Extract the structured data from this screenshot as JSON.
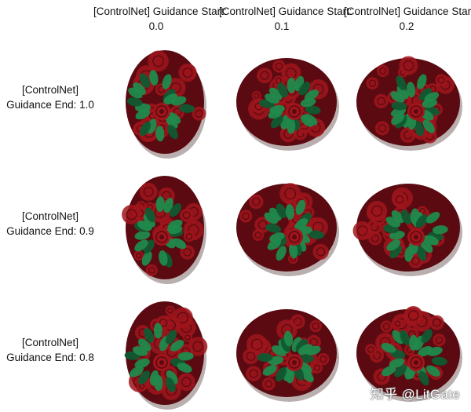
{
  "columns": [
    {
      "line1": "[ControlNet] Guidance Start:",
      "line2": "0.0"
    },
    {
      "line1": "[ControlNet] Guidance Start:",
      "line2": "0.1"
    },
    {
      "line1": "[ControlNet] Guidance Start:",
      "line2": "0.2"
    }
  ],
  "rows": [
    {
      "line1": "[ControlNet]",
      "line2": "Guidance End: 1.0"
    },
    {
      "line1": "[ControlNet]",
      "line2": "Guidance End: 0.9"
    },
    {
      "line1": "[ControlNet]",
      "line2": "Guidance End: 0.8"
    }
  ],
  "watermark": "知乎 @LitGate",
  "colors": {
    "leaf_green": "#1f8a4c",
    "leaf_dark": "#0f5a32",
    "rose_red": "#a0151c",
    "rose_dark": "#5a0a10",
    "shadow": "#3a1a1a"
  }
}
